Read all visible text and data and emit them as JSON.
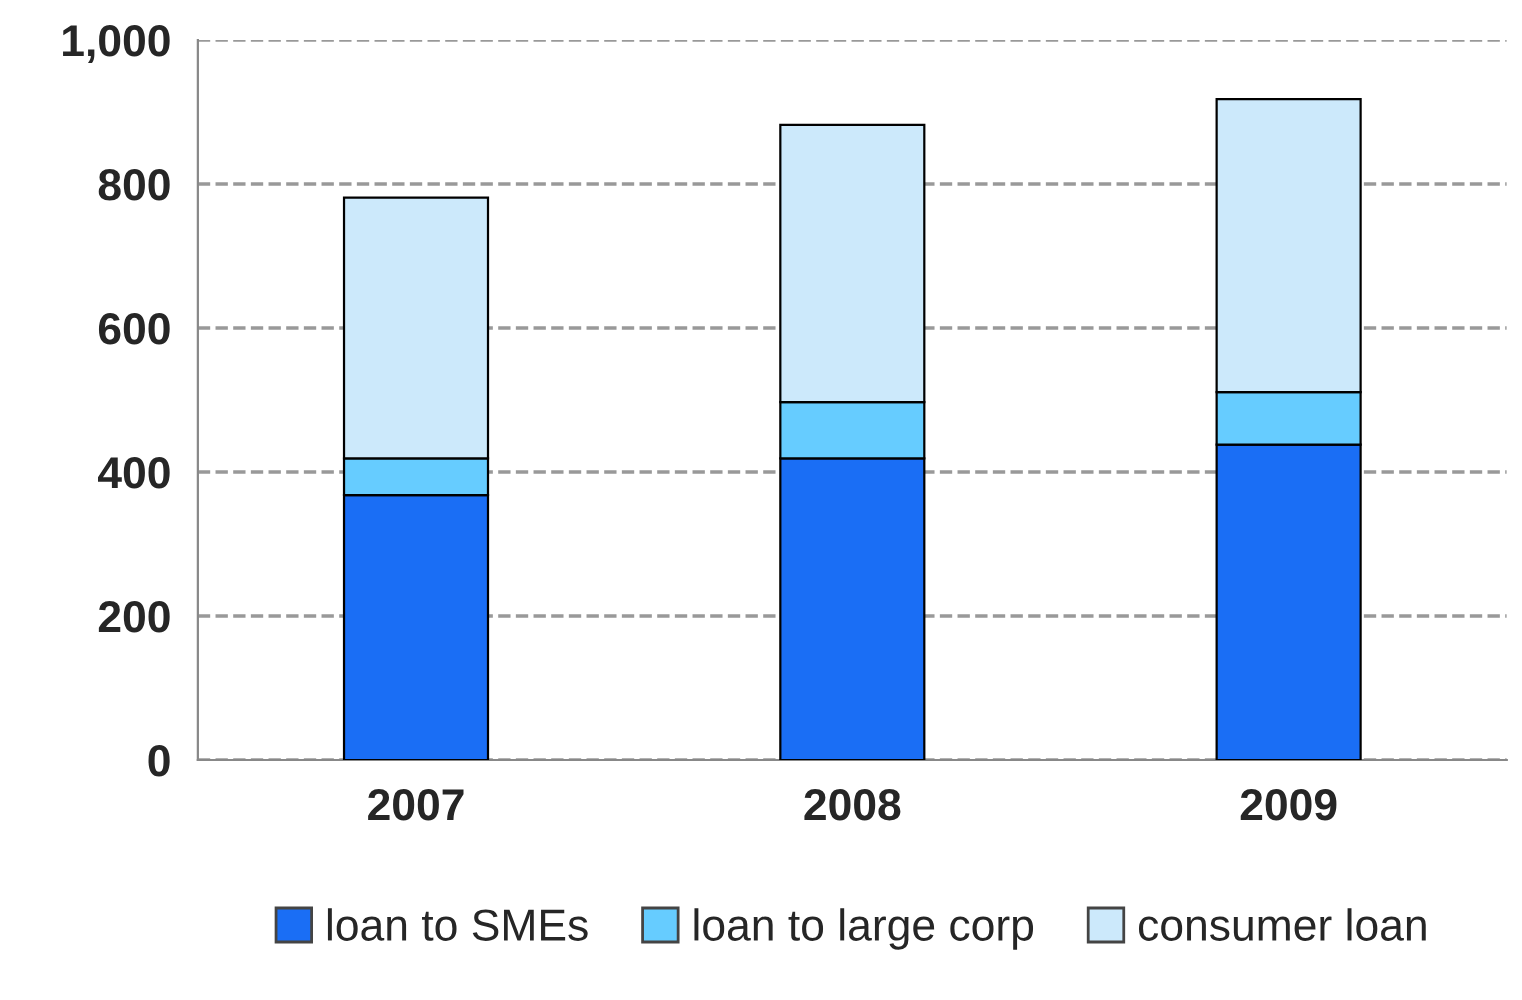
{
  "chart_data": {
    "type": "bar",
    "stacked": true,
    "categories": [
      "2007",
      "2008",
      "2009"
    ],
    "series": [
      {
        "name": "loan to SMEs",
        "color": "#1a6ef5",
        "values": [
          368,
          419,
          438
        ]
      },
      {
        "name": "loan to large corp",
        "color": "#66ccff",
        "values": [
          51,
          78,
          73
        ]
      },
      {
        "name": "consumer loan",
        "color": "#cce9fb",
        "values": [
          362,
          385,
          407
        ]
      }
    ],
    "ylim": [
      0,
      1000
    ],
    "yticks": [
      0,
      200,
      400,
      600,
      800,
      {
        "value": 1000,
        "label": "1,000"
      }
    ],
    "grid": "y",
    "legend": "bottom"
  }
}
